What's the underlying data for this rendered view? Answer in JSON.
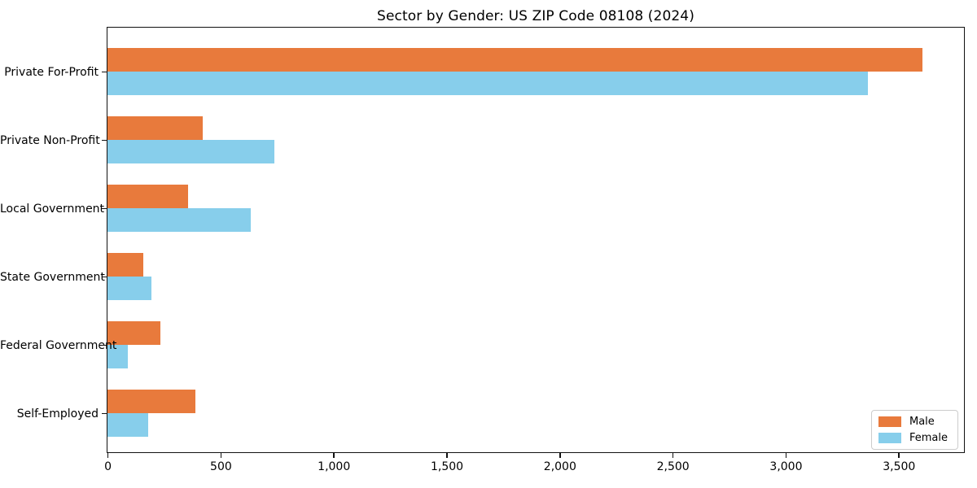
{
  "chart_data": {
    "type": "bar",
    "orientation": "horizontal",
    "title": "Sector by Gender: US ZIP Code 08108 (2024)",
    "categories": [
      "Private For-Profit",
      "Private Non-Profit",
      "Local Government",
      "State Government",
      "Federal Government",
      "Self-Employed"
    ],
    "series": [
      {
        "name": "Male",
        "color": "#e87a3c",
        "values": [
          3605,
          420,
          355,
          160,
          235,
          390
        ]
      },
      {
        "name": "Female",
        "color": "#87ceeb",
        "values": [
          3365,
          740,
          635,
          195,
          90,
          180
        ]
      }
    ],
    "xlabel": "",
    "ylabel": "",
    "xlim": [
      0,
      3785
    ],
    "xticks": {
      "values": [
        0,
        500,
        1000,
        1500,
        2000,
        2500,
        3000,
        3500
      ],
      "labels": [
        "0",
        "500",
        "1,000",
        "1,500",
        "2,000",
        "2,500",
        "3,000",
        "3,500"
      ]
    },
    "grid": false,
    "legend_position": "lower right",
    "spine_color": "#111111",
    "background_color": "#ffffff"
  }
}
